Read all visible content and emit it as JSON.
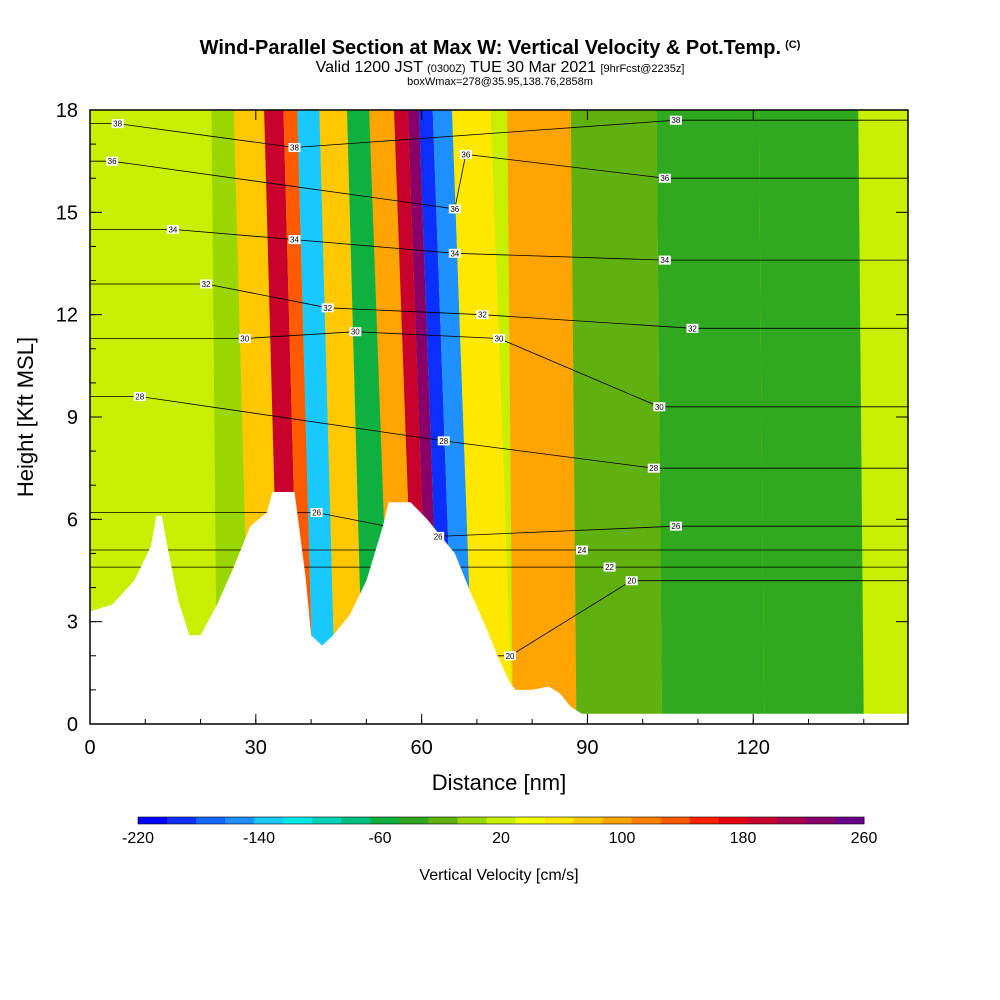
{
  "header": {
    "title": "Wind-Parallel Section at Max W: Vertical Velocity & Pot.Temp.",
    "title_mark": "(C)",
    "subtitle_a": "Valid 1200 JST",
    "subtitle_b": "(0300Z)",
    "subtitle_c": "TUE 30 Mar 2021",
    "subtitle_d": "[9hrFcst@2235z]",
    "subtitle2": "boxWmax=278@35.95,138.76,2858m"
  },
  "chart_data": {
    "type": "heatmap",
    "xlabel": "Distance [nm]",
    "ylabel": "Height [Kft MSL]",
    "xlim": [
      0,
      148
    ],
    "ylim": [
      0,
      18
    ],
    "x_ticks": [
      0,
      30,
      60,
      90,
      120
    ],
    "y_ticks": [
      0,
      3,
      6,
      9,
      12,
      15,
      18
    ],
    "colorbar": {
      "title": "Vertical Velocity [cm/s]",
      "min": -220,
      "max": 260,
      "step": 20,
      "tick_labels": [
        -220,
        -140,
        -60,
        20,
        100,
        180,
        260
      ],
      "colors": [
        "#0000ff",
        "#0a2fff",
        "#1466ff",
        "#1e90ff",
        "#18c8ff",
        "#00e8e8",
        "#00d4b4",
        "#00c080",
        "#10b040",
        "#30a820",
        "#60b010",
        "#9ad600",
        "#c8ee00",
        "#eeff00",
        "#ffe800",
        "#ffc800",
        "#ffa400",
        "#ff8000",
        "#ff5a00",
        "#ff2200",
        "#e80010",
        "#c8002c",
        "#a8004c",
        "#880068",
        "#6a008a"
      ]
    },
    "vertical_velocity_bands": [
      {
        "x": 20,
        "value": 30
      },
      {
        "x": 26,
        "value": 10
      },
      {
        "x": 32,
        "value": 90
      },
      {
        "x": 37,
        "value": 210
      },
      {
        "x": 39,
        "value": 150
      },
      {
        "x": 42,
        "value": -130
      },
      {
        "x": 47,
        "value": 80
      },
      {
        "x": 52,
        "value": -60
      },
      {
        "x": 57,
        "value": 100
      },
      {
        "x": 61,
        "value": 200
      },
      {
        "x": 62,
        "value": 240
      },
      {
        "x": 65,
        "value": -200
      },
      {
        "x": 67,
        "value": -150
      },
      {
        "x": 72,
        "value": 60
      },
      {
        "x": 81,
        "value": 110
      },
      {
        "x": 95,
        "value": -20
      },
      {
        "x": 112,
        "value": -30
      },
      {
        "x": 132,
        "value": -40
      }
    ],
    "isentrope_labels": [
      {
        "value": "38",
        "x": 5,
        "y": 17.6
      },
      {
        "value": "36",
        "x": 4,
        "y": 16.5
      },
      {
        "value": "34",
        "x": 15,
        "y": 14.5
      },
      {
        "value": "32",
        "x": 21,
        "y": 12.9
      },
      {
        "value": "30",
        "x": 28,
        "y": 11.3
      },
      {
        "value": "28",
        "x": 9,
        "y": 9.6
      },
      {
        "value": "38",
        "x": 37,
        "y": 16.9
      },
      {
        "value": "34",
        "x": 37,
        "y": 14.2
      },
      {
        "value": "32",
        "x": 43,
        "y": 12.2
      },
      {
        "value": "30",
        "x": 48,
        "y": 11.5
      },
      {
        "value": "26",
        "x": 41,
        "y": 6.2
      },
      {
        "value": "36",
        "x": 68,
        "y": 16.7
      },
      {
        "value": "36",
        "x": 66,
        "y": 15.1
      },
      {
        "value": "34",
        "x": 66,
        "y": 13.8
      },
      {
        "value": "32",
        "x": 71,
        "y": 12
      },
      {
        "value": "30",
        "x": 74,
        "y": 11.3
      },
      {
        "value": "28",
        "x": 64,
        "y": 8.3
      },
      {
        "value": "26",
        "x": 63,
        "y": 5.5
      },
      {
        "value": "20",
        "x": 76,
        "y": 2
      },
      {
        "value": "38",
        "x": 106,
        "y": 17.7
      },
      {
        "value": "36",
        "x": 104,
        "y": 16
      },
      {
        "value": "34",
        "x": 104,
        "y": 13.6
      },
      {
        "value": "32",
        "x": 109,
        "y": 11.6
      },
      {
        "value": "30",
        "x": 103,
        "y": 9.3
      },
      {
        "value": "28",
        "x": 102,
        "y": 7.5
      },
      {
        "value": "26",
        "x": 106,
        "y": 5.8
      },
      {
        "value": "24",
        "x": 89,
        "y": 5.1
      },
      {
        "value": "22",
        "x": 94,
        "y": 4.6
      },
      {
        "value": "20",
        "x": 98,
        "y": 4.2
      }
    ],
    "terrain": [
      [
        0,
        3.3
      ],
      [
        4,
        3.5
      ],
      [
        8,
        4.2
      ],
      [
        11,
        5.2
      ],
      [
        12,
        6.1
      ],
      [
        13,
        6.1
      ],
      [
        14,
        5.2
      ],
      [
        16,
        3.6
      ],
      [
        18,
        2.6
      ],
      [
        20,
        2.6
      ],
      [
        23,
        3.5
      ],
      [
        26,
        4.6
      ],
      [
        29,
        5.8
      ],
      [
        32,
        6.2
      ],
      [
        33,
        6.8
      ],
      [
        37,
        6.8
      ],
      [
        39,
        4.3
      ],
      [
        40,
        2.6
      ],
      [
        42,
        2.3
      ],
      [
        44,
        2.6
      ],
      [
        47,
        3.2
      ],
      [
        50,
        4.2
      ],
      [
        53,
        5.8
      ],
      [
        54,
        6.5
      ],
      [
        58,
        6.5
      ],
      [
        61,
        6.0
      ],
      [
        63,
        5.6
      ],
      [
        66,
        5.0
      ],
      [
        69,
        3.8
      ],
      [
        72,
        2.7
      ],
      [
        74,
        1.9
      ],
      [
        76,
        1.2
      ],
      [
        77,
        1.0
      ],
      [
        80,
        1.0
      ],
      [
        83,
        1.1
      ],
      [
        85,
        0.9
      ],
      [
        87,
        0.5
      ],
      [
        89,
        0.3
      ],
      [
        148,
        0.3
      ]
    ]
  }
}
